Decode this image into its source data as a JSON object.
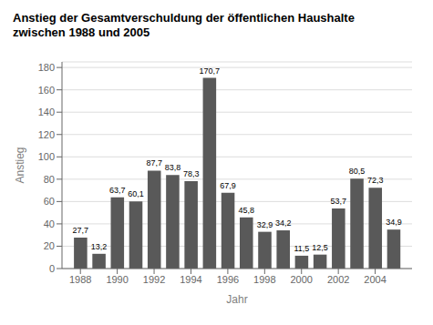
{
  "chart_data": {
    "type": "bar",
    "title": "Anstieg der Gesamtverschuldung der öffentlichen Haushalte\nzwischen 1988 und 2005",
    "xlabel": "Jahr",
    "ylabel": "Anstieg",
    "x": [
      1988,
      1989,
      1990,
      1991,
      1992,
      1993,
      1994,
      1995,
      1996,
      1997,
      1998,
      1999,
      2000,
      2001,
      2002,
      2003,
      2004,
      2005
    ],
    "values": [
      27.7,
      13.2,
      63.7,
      60.1,
      87.7,
      83.8,
      78.3,
      170.7,
      67.9,
      45.8,
      32.9,
      34.2,
      11.5,
      12.5,
      53.7,
      80.5,
      72.3,
      34.9
    ],
    "value_labels": [
      "27,7",
      "13,2",
      "63,7",
      "60,1",
      "87,7",
      "83,8",
      "78,3",
      "170,7",
      "67,9",
      "45,8",
      "32,9",
      "34,2",
      "11,5",
      "12,5",
      "53,7",
      "80,5",
      "72,3",
      "34,9"
    ],
    "data_labels": true,
    "color": "#595959",
    "xlim": [
      1987,
      2006
    ],
    "xticks": [
      1988,
      1990,
      1992,
      1994,
      1996,
      1998,
      2000,
      2002,
      2004
    ],
    "ylim": [
      0,
      185
    ],
    "yticks": [
      0,
      20,
      40,
      60,
      80,
      100,
      120,
      140,
      160,
      180
    ],
    "grid": true
  }
}
